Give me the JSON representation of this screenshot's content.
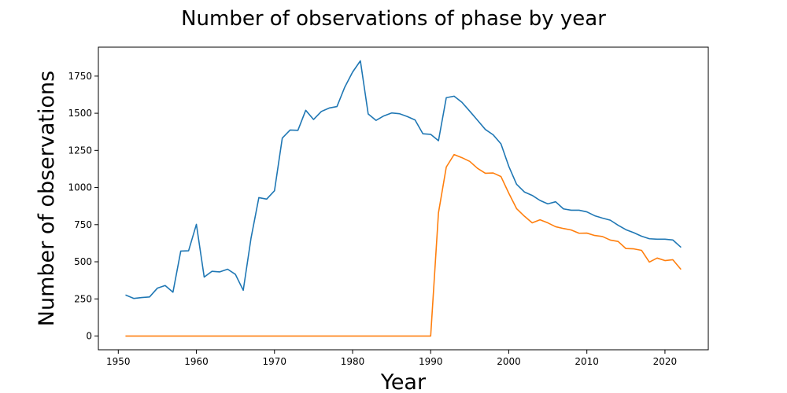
{
  "chart_data": {
    "type": "line",
    "title": "Number of observations of phase by year",
    "xlabel": "Year",
    "ylabel": "Number of observations",
    "xlim": [
      1947.45,
      2025.55
    ],
    "ylim": [
      -92.5,
      1945
    ],
    "xticks": [
      1950,
      1960,
      1970,
      1980,
      1990,
      2000,
      2010,
      2020
    ],
    "yticks": [
      0,
      250,
      500,
      750,
      1000,
      1250,
      1500,
      1750
    ],
    "grid": false,
    "legend": "none",
    "x": [
      1951,
      1952,
      1953,
      1954,
      1955,
      1956,
      1957,
      1958,
      1959,
      1960,
      1961,
      1962,
      1963,
      1964,
      1965,
      1966,
      1967,
      1968,
      1969,
      1970,
      1971,
      1972,
      1973,
      1974,
      1975,
      1976,
      1977,
      1978,
      1979,
      1980,
      1981,
      1982,
      1983,
      1984,
      1985,
      1986,
      1987,
      1988,
      1989,
      1990,
      1991,
      1992,
      1993,
      1994,
      1995,
      1996,
      1997,
      1998,
      1999,
      2000,
      2001,
      2002,
      2003,
      2004,
      2005,
      2006,
      2007,
      2008,
      2009,
      2010,
      2011,
      2012,
      2013,
      2014,
      2015,
      2016,
      2017,
      2018,
      2019,
      2020,
      2021,
      2022
    ],
    "series": [
      {
        "color": "#1f77b4",
        "values": [
          275,
          253,
          259,
          263,
          322,
          340,
          295,
          572,
          574,
          752,
          397,
          436,
          432,
          450,
          415,
          308,
          660,
          932,
          922,
          978,
          1333,
          1387,
          1385,
          1520,
          1458,
          1512,
          1535,
          1545,
          1676,
          1777,
          1853,
          1495,
          1452,
          1482,
          1502,
          1497,
          1478,
          1455,
          1362,
          1358,
          1315,
          1605,
          1615,
          1574,
          1514,
          1453,
          1391,
          1355,
          1294,
          1143,
          1022,
          970,
          947,
          913,
          890,
          904,
          856,
          847,
          847,
          836,
          810,
          794,
          780,
          746,
          716,
          696,
          672,
          655,
          652,
          652,
          647,
          600
        ]
      },
      {
        "color": "#ff7f0e",
        "values": [
          0,
          0,
          0,
          0,
          0,
          0,
          0,
          0,
          0,
          0,
          0,
          0,
          0,
          0,
          0,
          0,
          0,
          0,
          0,
          0,
          0,
          0,
          0,
          0,
          0,
          0,
          0,
          0,
          0,
          0,
          0,
          0,
          0,
          0,
          0,
          0,
          0,
          0,
          0,
          0,
          830,
          1138,
          1222,
          1201,
          1176,
          1129,
          1096,
          1098,
          1074,
          962,
          858,
          807,
          762,
          783,
          762,
          736,
          724,
          714,
          692,
          693,
          677,
          670,
          646,
          637,
          589,
          587,
          577,
          498,
          525,
          508,
          514,
          452
        ]
      }
    ]
  }
}
